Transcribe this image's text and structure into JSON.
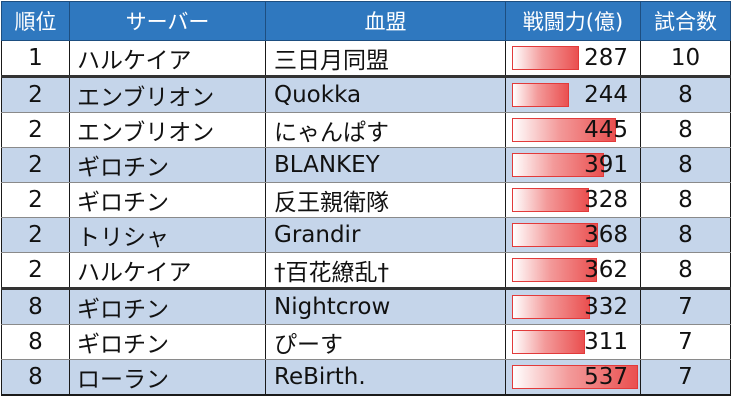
{
  "table": {
    "headers": {
      "rank": "順位",
      "server": "サーバー",
      "alliance": "血盟",
      "power": "戦闘力(億)",
      "matches": "試合数"
    },
    "bar_color": "#ea5050",
    "header_color": "#2f78bf",
    "stripe_color": "#c5d5ea",
    "rows": [
      {
        "rank": "1",
        "server": "ハルケイア",
        "alliance": "三日月同盟",
        "power": "287",
        "matches": "10"
      },
      {
        "rank": "2",
        "server": "エンブリオン",
        "alliance": "Quokka",
        "power": "244",
        "matches": "8"
      },
      {
        "rank": "2",
        "server": "エンブリオン",
        "alliance": "にゃんぱす",
        "power": "445",
        "matches": "8"
      },
      {
        "rank": "2",
        "server": "ギロチン",
        "alliance": "BLANKEY",
        "power": "391",
        "matches": "8"
      },
      {
        "rank": "2",
        "server": "ギロチン",
        "alliance": "反王親衛隊",
        "power": "328",
        "matches": "8"
      },
      {
        "rank": "2",
        "server": "トリシャ",
        "alliance": "Grandir",
        "power": "368",
        "matches": "8"
      },
      {
        "rank": "2",
        "server": "ハルケイア",
        "alliance": "†百花繚乱†",
        "power": "362",
        "matches": "8"
      },
      {
        "rank": "8",
        "server": "ギロチン",
        "alliance": "Nightcrow",
        "power": "332",
        "matches": "7"
      },
      {
        "rank": "8",
        "server": "ギロチン",
        "alliance": "ぴーす",
        "power": "311",
        "matches": "7"
      },
      {
        "rank": "8",
        "server": "ローラン",
        "alliance": "ReBirth.",
        "power": "537",
        "matches": "7"
      }
    ]
  }
}
